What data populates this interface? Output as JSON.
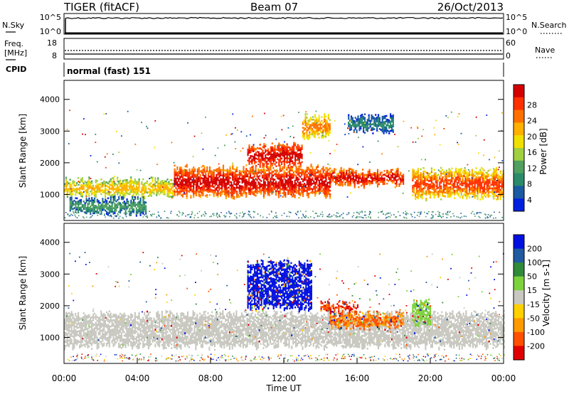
{
  "header": {
    "station": "TIGER (fitACF)",
    "beam": "Beam 07",
    "date": "26/Oct/2013"
  },
  "panels": {
    "noise": {
      "left_label": "N.Sky",
      "right_label": "N.Search",
      "left_ticks": [
        "10^5",
        "10^0"
      ],
      "right_ticks": [
        "10^5",
        "10^0"
      ]
    },
    "freq": {
      "left_label_1": "Freq.",
      "left_label_2": "[MHz]",
      "right_label": "Nave",
      "left_ticks": [
        "18",
        "8"
      ],
      "right_ticks": [
        "60",
        "0"
      ]
    },
    "cpid": {
      "label": "CPID",
      "text": "normal (fast) 151"
    }
  },
  "chart_data": [
    {
      "type": "heatmap",
      "title": "",
      "quantity": "Power",
      "ylabel": "Slant Range [km]",
      "xlabel": "",
      "ylim": [
        180,
        4600
      ],
      "y_ticks": [
        1000,
        2000,
        3000,
        4000
      ],
      "colorbar": {
        "label": "Power [dB]",
        "ticks": [
          "28",
          "24",
          "20",
          "16",
          "12",
          "8",
          "4"
        ],
        "colors": [
          "#d40000",
          "#ff3000",
          "#ff7000",
          "#ffb000",
          "#f0e000",
          "#a0d040",
          "#50a060",
          "#2a8a6a",
          "#1a5aa0",
          "#0020e0"
        ]
      },
      "echo_bands": [
        {
          "t0": 0.0,
          "t1": 6.0,
          "r_lo": 950,
          "r_hi": 1500,
          "level": "12-20 dB"
        },
        {
          "t0": 0.3,
          "t1": 4.5,
          "r_lo": 400,
          "r_hi": 900,
          "level": "4-12 dB"
        },
        {
          "t0": 6.0,
          "t1": 14.5,
          "r_lo": 950,
          "r_hi": 1900,
          "level": "20-28 dB"
        },
        {
          "t0": 10.0,
          "t1": 13.0,
          "r_lo": 1900,
          "r_hi": 2600,
          "level": "24-28 dB"
        },
        {
          "t0": 13.0,
          "t1": 14.5,
          "r_lo": 2800,
          "r_hi": 3500,
          "level": "16-24 dB"
        },
        {
          "t0": 14.5,
          "t1": 18.5,
          "r_lo": 1300,
          "r_hi": 1800,
          "level": "20-28 dB"
        },
        {
          "t0": 15.5,
          "t1": 18.0,
          "r_lo": 3000,
          "r_hi": 3500,
          "level": "4-8 dB"
        },
        {
          "t0": 19.0,
          "t1": 24.0,
          "r_lo": 900,
          "r_hi": 1800,
          "level": "16-24 dB"
        }
      ]
    },
    {
      "type": "heatmap",
      "title": "",
      "quantity": "Velocity",
      "ylabel": "Slant Range [km]",
      "xlabel": "Time UT",
      "ylim": [
        180,
        4600
      ],
      "y_ticks": [
        1000,
        2000,
        3000,
        4000
      ],
      "x_ticks": [
        "00:00",
        "04:00",
        "08:00",
        "12:00",
        "16:00",
        "20:00",
        "00:00"
      ],
      "colorbar": {
        "label": "Velocity [m s-1]",
        "ticks": [
          "200",
          "100",
          "50",
          "15",
          "-15",
          "-50",
          "-100",
          "-200"
        ],
        "colors": [
          "#0010e0",
          "#205aa0",
          "#2f8a3a",
          "#7cd23c",
          "#c8c8c0",
          "#ffd000",
          "#ff9a00",
          "#ff5000",
          "#e00000"
        ]
      },
      "echo_bands": [
        {
          "t0": 0.0,
          "t1": 24.0,
          "r_lo": 700,
          "r_hi": 1800,
          "level": "-15 to 15 m/s"
        },
        {
          "t0": 10.0,
          "t1": 13.5,
          "r_lo": 1900,
          "r_hi": 3400,
          "level": "+100 to +200 m/s"
        },
        {
          "t0": 14.5,
          "t1": 18.5,
          "r_lo": 1300,
          "r_hi": 1800,
          "level": "-50 to -100 m/s"
        },
        {
          "t0": 14.0,
          "t1": 16.0,
          "r_lo": 1800,
          "r_hi": 2100,
          "level": "-100 to -200 m/s"
        },
        {
          "t0": 19.0,
          "t1": 20.0,
          "r_lo": 1400,
          "r_hi": 2200,
          "level": "15 to 50 m/s"
        }
      ]
    }
  ]
}
